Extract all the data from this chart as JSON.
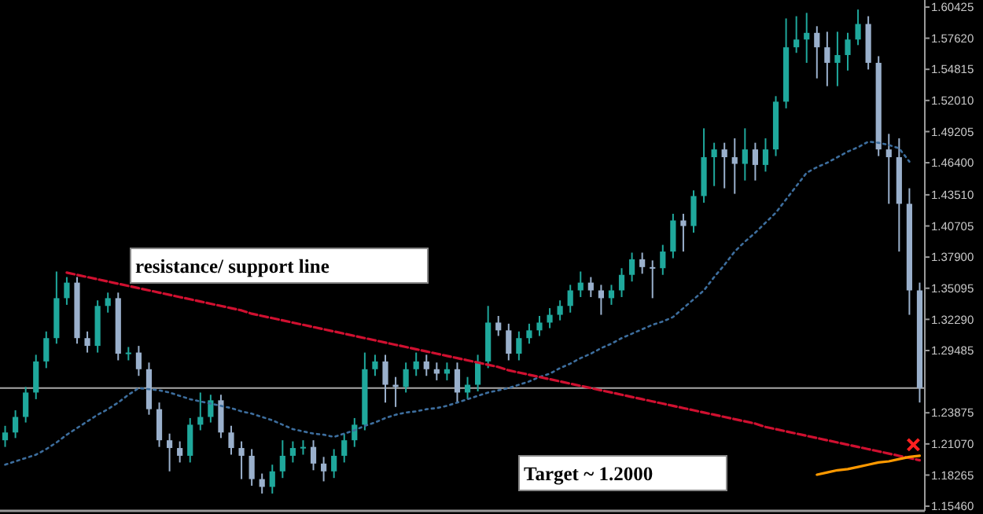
{
  "chart_data": {
    "type": "candlestick",
    "grid": false,
    "tick_labels": "y",
    "categories": [
      null,
      null,
      null,
      null,
      null,
      null,
      null,
      null,
      null,
      null,
      null,
      null,
      null,
      null,
      null,
      null,
      null,
      null,
      null,
      null,
      null,
      null,
      null,
      null,
      null,
      null,
      null,
      null,
      null,
      null,
      null,
      null,
      null,
      null,
      null,
      null,
      null,
      null,
      null,
      null,
      null,
      null,
      null,
      null,
      null,
      null,
      null,
      null,
      null,
      null,
      null,
      null,
      null,
      null,
      null,
      null,
      null,
      null,
      null,
      null,
      null,
      null,
      null,
      null,
      null,
      null,
      null,
      null,
      null,
      null,
      null,
      null,
      null,
      null,
      null,
      null,
      null,
      null,
      null,
      null,
      null,
      null,
      null,
      null,
      null,
      null,
      null,
      null,
      null,
      null
    ],
    "ylim": [
      1.1504,
      1.6106
    ],
    "yticks": [
      {
        "value": 1.60425,
        "label": "1.60425"
      },
      {
        "value": 1.5762,
        "label": "1.57620"
      },
      {
        "value": 1.54815,
        "label": "1.54815"
      },
      {
        "value": 1.5201,
        "label": "1.52010"
      },
      {
        "value": 1.49205,
        "label": "1.49205"
      },
      {
        "value": 1.464,
        "label": "1.46400"
      },
      {
        "value": 1.4351,
        "label": "1.43510"
      },
      {
        "value": 1.40705,
        "label": "1.40705"
      },
      {
        "value": 1.379,
        "label": "1.37900"
      },
      {
        "value": 1.35095,
        "label": "1.35095"
      },
      {
        "value": 1.3229,
        "label": "1.32290"
      },
      {
        "value": 1.29485,
        "label": "1.29485"
      },
      {
        "value": 1.23875,
        "label": "1.23875"
      },
      {
        "value": 1.2107,
        "label": "1.21070"
      },
      {
        "value": 1.18265,
        "label": "1.18265"
      },
      {
        "value": 1.1546,
        "label": "1.15460"
      }
    ],
    "ref_lines": [
      {
        "axis": "y",
        "value": 1.261,
        "color": "#a8a8a8"
      }
    ],
    "annotations": [
      "resistance/ support line",
      "Target ~ 1.2000"
    ],
    "series": [
      {
        "type": "candlestick",
        "colors": [
          "#1fa89c",
          "#1fa89c",
          "#1fa89c",
          "#1fa89c",
          "#1fa89c",
          "#1fa89c",
          "#1fa89c",
          "#9ab0cc",
          "#9ab0cc",
          "#1fa89c",
          "#1fa89c",
          "#9ab0cc",
          "#1fa89c",
          "#9ab0cc",
          "#9ab0cc",
          "#9ab0cc",
          "#9ab0cc",
          "#9ab0cc",
          "#1fa89c",
          "#1fa89c",
          "#1fa89c",
          "#9ab0cc",
          "#9ab0cc",
          "#9ab0cc",
          "#9ab0cc",
          "#9ab0cc",
          "#1fa89c",
          "#1fa89c",
          "#1fa89c",
          "#1fa89c",
          "#9ab0cc",
          "#9ab0cc",
          "#1fa89c",
          "#1fa89c",
          "#1fa89c",
          "#1fa89c",
          "#1fa89c",
          "#9ab0cc",
          "#9ab0cc",
          "#1fa89c",
          "#1fa89c",
          "#9ab0cc",
          "#9ab0cc",
          "#1fa89c",
          "#9ab0cc",
          "#1fa89c",
          "#1fa89c",
          "#1fa89c",
          "#9ab0cc",
          "#9ab0cc",
          "#1fa89c",
          "#1fa89c",
          "#1fa89c",
          "#1fa89c",
          "#1fa89c",
          "#1fa89c",
          "#1fa89c",
          "#9ab0cc",
          "#9ab0cc",
          "#1fa89c",
          "#1fa89c",
          "#1fa89c",
          "#9ab0cc",
          "#9ab0cc",
          "#1fa89c",
          "#1fa89c",
          "#9ab0cc",
          "#1fa89c",
          "#1fa89c",
          "#1fa89c",
          "#9ab0cc",
          "#9ab0cc",
          "#1fa89c",
          "#9ab0cc",
          "#1fa89c",
          "#1fa89c",
          "#1fa89c",
          "#1fa89c",
          "#1fa89c",
          "#9ab0cc",
          "#9ab0cc",
          "#1fa89c",
          "#1fa89c",
          "#1fa89c",
          "#9ab0cc",
          "#9ab0cc",
          "#9ab0cc",
          "#9ab0cc",
          "#9ab0cc",
          "#9ab0cc"
        ],
        "ohlc": [
          [
            1.214,
            1.227,
            1.208,
            1.221
          ],
          [
            1.221,
            1.241,
            1.216,
            1.235
          ],
          [
            1.235,
            1.262,
            1.23,
            1.257
          ],
          [
            1.257,
            1.291,
            1.251,
            1.285
          ],
          [
            1.285,
            1.312,
            1.279,
            1.306
          ],
          [
            1.306,
            1.366,
            1.301,
            1.342
          ],
          [
            1.342,
            1.361,
            1.336,
            1.356
          ],
          [
            1.356,
            1.361,
            1.301,
            1.306
          ],
          [
            1.306,
            1.312,
            1.293,
            1.299
          ],
          [
            1.299,
            1.34,
            1.293,
            1.335
          ],
          [
            1.335,
            1.347,
            1.329,
            1.342
          ],
          [
            1.342,
            1.347,
            1.286,
            1.292
          ],
          [
            1.292,
            1.298,
            1.286,
            1.293
          ],
          [
            1.293,
            1.299,
            1.272,
            1.278
          ],
          [
            1.278,
            1.284,
            1.237,
            1.242
          ],
          [
            1.242,
            1.248,
            1.208,
            1.214
          ],
          [
            1.214,
            1.22,
            1.186,
            1.207
          ],
          [
            1.207,
            1.213,
            1.194,
            1.2
          ],
          [
            1.2,
            1.234,
            1.194,
            1.228
          ],
          [
            1.228,
            1.257,
            1.223,
            1.235
          ],
          [
            1.235,
            1.255,
            1.23,
            1.25
          ],
          [
            1.25,
            1.255,
            1.216,
            1.221
          ],
          [
            1.221,
            1.227,
            1.201,
            1.207
          ],
          [
            1.207,
            1.213,
            1.179,
            1.2
          ],
          [
            1.2,
            1.206,
            1.173,
            1.179
          ],
          [
            1.179,
            1.184,
            1.166,
            1.172
          ],
          [
            1.172,
            1.192,
            1.166,
            1.186
          ],
          [
            1.186,
            1.214,
            1.18,
            1.2
          ],
          [
            1.2,
            1.213,
            1.194,
            1.207
          ],
          [
            1.207,
            1.214,
            1.201,
            1.208
          ],
          [
            1.208,
            1.214,
            1.187,
            1.193
          ],
          [
            1.193,
            1.199,
            1.177,
            1.186
          ],
          [
            1.186,
            1.206,
            1.18,
            1.2
          ],
          [
            1.2,
            1.22,
            1.194,
            1.214
          ],
          [
            1.214,
            1.234,
            1.208,
            1.228
          ],
          [
            1.228,
            1.293,
            1.223,
            1.278
          ],
          [
            1.278,
            1.291,
            1.272,
            1.285
          ],
          [
            1.285,
            1.291,
            1.248,
            1.264
          ],
          [
            1.264,
            1.271,
            1.244,
            1.262
          ],
          [
            1.262,
            1.284,
            1.257,
            1.278
          ],
          [
            1.278,
            1.293,
            1.272,
            1.285
          ],
          [
            1.285,
            1.291,
            1.272,
            1.278
          ],
          [
            1.278,
            1.284,
            1.268,
            1.274
          ],
          [
            1.274,
            1.284,
            1.268,
            1.278
          ],
          [
            1.278,
            1.284,
            1.248,
            1.257
          ],
          [
            1.257,
            1.271,
            1.251,
            1.264
          ],
          [
            1.264,
            1.291,
            1.258,
            1.285
          ],
          [
            1.285,
            1.335,
            1.279,
            1.32
          ],
          [
            1.32,
            1.326,
            1.308,
            1.313
          ],
          [
            1.313,
            1.319,
            1.286,
            1.292
          ],
          [
            1.292,
            1.312,
            1.286,
            1.306
          ],
          [
            1.306,
            1.319,
            1.301,
            1.313
          ],
          [
            1.313,
            1.326,
            1.308,
            1.32
          ],
          [
            1.32,
            1.333,
            1.315,
            1.327
          ],
          [
            1.327,
            1.34,
            1.322,
            1.335
          ],
          [
            1.335,
            1.354,
            1.329,
            1.349
          ],
          [
            1.349,
            1.366,
            1.343,
            1.356
          ],
          [
            1.356,
            1.361,
            1.343,
            1.349
          ],
          [
            1.349,
            1.354,
            1.327,
            1.342
          ],
          [
            1.342,
            1.354,
            1.336,
            1.349
          ],
          [
            1.349,
            1.369,
            1.343,
            1.363
          ],
          [
            1.363,
            1.383,
            1.357,
            1.377
          ],
          [
            1.377,
            1.383,
            1.364,
            1.37
          ],
          [
            1.37,
            1.376,
            1.342,
            1.369
          ],
          [
            1.369,
            1.39,
            1.363,
            1.384
          ],
          [
            1.384,
            1.418,
            1.378,
            1.412
          ],
          [
            1.412,
            1.418,
            1.384,
            1.407
          ],
          [
            1.407,
            1.439,
            1.401,
            1.434
          ],
          [
            1.434,
            1.495,
            1.428,
            1.469
          ],
          [
            1.469,
            1.482,
            1.443,
            1.476
          ],
          [
            1.476,
            1.482,
            1.441,
            1.469
          ],
          [
            1.469,
            1.486,
            1.436,
            1.463
          ],
          [
            1.463,
            1.495,
            1.448,
            1.476
          ],
          [
            1.476,
            1.482,
            1.448,
            1.462
          ],
          [
            1.462,
            1.486,
            1.456,
            1.476
          ],
          [
            1.476,
            1.524,
            1.47,
            1.519
          ],
          [
            1.519,
            1.594,
            1.513,
            1.568
          ],
          [
            1.568,
            1.596,
            1.563,
            1.575
          ],
          [
            1.575,
            1.599,
            1.554,
            1.581
          ],
          [
            1.581,
            1.587,
            1.54,
            1.568
          ],
          [
            1.568,
            1.582,
            1.533,
            1.554
          ],
          [
            1.554,
            1.582,
            1.533,
            1.561
          ],
          [
            1.561,
            1.581,
            1.547,
            1.575
          ],
          [
            1.575,
            1.602,
            1.57,
            1.589
          ],
          [
            1.589,
            1.596,
            1.548,
            1.554
          ],
          [
            1.554,
            1.56,
            1.47,
            1.476
          ],
          [
            1.476,
            1.49,
            1.427,
            1.469
          ],
          [
            1.469,
            1.486,
            1.384,
            1.427
          ],
          [
            1.427,
            1.441,
            1.327,
            1.349
          ],
          [
            1.349,
            1.356,
            1.248,
            1.261
          ]
        ]
      },
      {
        "type": "line",
        "color": "#3d6e9e",
        "line_style": "dotted",
        "values": [
          1.192,
          1.195,
          1.198,
          1.201,
          1.206,
          1.212,
          1.219,
          1.225,
          1.231,
          1.237,
          1.242,
          1.248,
          1.255,
          1.261,
          1.26,
          1.259,
          1.257,
          1.254,
          1.251,
          1.249,
          1.247,
          1.245,
          1.243,
          1.24,
          1.238,
          1.235,
          1.232,
          1.228,
          1.224,
          1.222,
          1.22,
          1.219,
          1.217,
          1.22,
          1.223,
          1.227,
          1.23,
          1.234,
          1.237,
          1.239,
          1.24,
          1.242,
          1.243,
          1.245,
          1.248,
          1.251,
          1.254,
          1.257,
          1.259,
          1.261,
          1.264,
          1.267,
          1.271,
          1.274,
          1.279,
          1.283,
          1.288,
          1.292,
          1.297,
          1.301,
          1.306,
          1.31,
          1.314,
          1.318,
          1.321,
          1.325,
          1.333,
          1.341,
          1.349,
          1.361,
          1.372,
          1.384,
          1.393,
          1.401,
          1.41,
          1.419,
          1.431,
          1.443,
          1.455,
          1.46,
          1.464,
          1.469,
          1.474,
          1.478,
          1.483,
          1.482,
          1.48,
          1.477,
          1.465,
          null
        ]
      },
      {
        "type": "line",
        "color": "#d01030",
        "line_style": "dashed",
        "values": [
          null,
          null,
          null,
          null,
          null,
          null,
          1.365,
          1.363,
          1.361,
          1.359,
          1.357,
          1.355,
          1.353,
          1.351,
          1.349,
          1.347,
          1.345,
          1.343,
          1.341,
          1.339,
          1.337,
          1.335,
          1.333,
          1.331,
          1.328,
          1.326,
          1.324,
          1.322,
          1.32,
          1.318,
          1.316,
          1.314,
          1.312,
          1.31,
          1.308,
          1.306,
          1.304,
          1.302,
          1.3,
          1.298,
          1.296,
          1.294,
          1.292,
          1.29,
          1.288,
          1.286,
          1.284,
          1.282,
          1.28,
          1.277,
          1.275,
          1.273,
          1.271,
          1.269,
          1.267,
          1.265,
          1.263,
          1.261,
          1.259,
          1.257,
          1.255,
          1.253,
          1.251,
          1.249,
          1.247,
          1.245,
          1.243,
          1.241,
          1.239,
          1.237,
          1.235,
          1.233,
          1.231,
          1.229,
          1.226,
          1.224,
          1.222,
          1.22,
          1.218,
          1.216,
          1.214,
          1.212,
          1.21,
          1.208,
          1.206,
          1.204,
          1.202,
          1.2,
          1.198,
          1.196
        ]
      },
      {
        "type": "line",
        "color": "#ff9900",
        "line_style": "solid",
        "values": [
          null,
          null,
          null,
          null,
          null,
          null,
          null,
          null,
          null,
          null,
          null,
          null,
          null,
          null,
          null,
          null,
          null,
          null,
          null,
          null,
          null,
          null,
          null,
          null,
          null,
          null,
          null,
          null,
          null,
          null,
          null,
          null,
          null,
          null,
          null,
          null,
          null,
          null,
          null,
          null,
          null,
          null,
          null,
          null,
          null,
          null,
          null,
          null,
          null,
          null,
          null,
          null,
          null,
          null,
          null,
          null,
          null,
          null,
          null,
          null,
          null,
          null,
          null,
          null,
          null,
          null,
          null,
          null,
          null,
          null,
          null,
          null,
          null,
          null,
          null,
          null,
          null,
          null,
          null,
          1.183,
          1.185,
          1.187,
          1.188,
          1.19,
          1.192,
          1.194,
          1.195,
          1.197,
          1.199,
          1.2
        ]
      }
    ]
  }
}
